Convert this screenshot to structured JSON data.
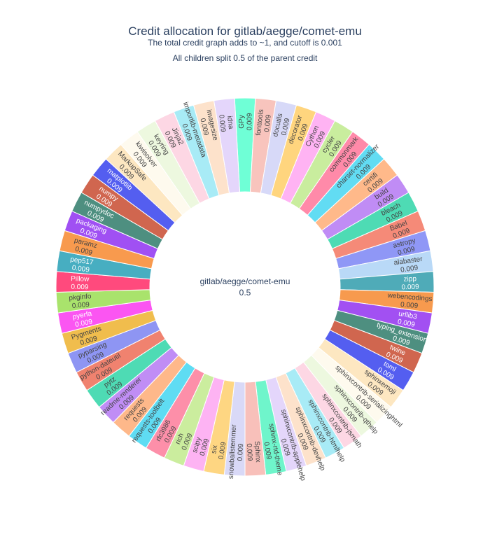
{
  "chart_data": {
    "type": "sunburst",
    "title": "Credit allocation for gitlab/aegge/comet-emu",
    "subtitle_lines": [
      "The total credit graph adds to ~1, and cutoff is 0.001",
      "All children split 0.5 of the parent credit"
    ],
    "root": {
      "label": "gitlab/aegge/comet-emu",
      "value_text": "0.5"
    },
    "children": [
      {
        "label": "GPy",
        "value": 0.009,
        "value_text": "0.009",
        "color": "#6fffd6"
      },
      {
        "label": "fonttools",
        "value": 0.009,
        "value_text": "0.009",
        "color": "#f8c4bd"
      },
      {
        "label": "docutils",
        "value": 0.009,
        "value_text": "0.009",
        "color": "#d7d9f8"
      },
      {
        "label": "decorator",
        "value": 0.009,
        "value_text": "0.009",
        "color": "#ffd57e"
      },
      {
        "label": "Cython",
        "value": 0.009,
        "value_text": "0.009",
        "color": "#ffb3f3"
      },
      {
        "label": "cycler",
        "value": 0.009,
        "value_text": "0.009",
        "color": "#c9ed9e"
      },
      {
        "label": "commonmark",
        "value": 0.009,
        "value_text": "0.009",
        "color": "#ff8aa9"
      },
      {
        "label": "charset-normalizer",
        "value": 0.009,
        "value_text": "0.009",
        "color": "#62dcf3"
      },
      {
        "label": "certifi",
        "value": 0.009,
        "value_text": "0.009",
        "color": "#ffb98a"
      },
      {
        "label": "build",
        "value": 0.009,
        "value_text": "0.009",
        "color": "#c08cf5"
      },
      {
        "label": "bleach",
        "value": 0.009,
        "value_text": "0.009",
        "color": "#4edbb4"
      },
      {
        "label": "Babel",
        "value": 0.009,
        "value_text": "0.009",
        "color": "#f58a78"
      },
      {
        "label": "astropy",
        "value": 0.009,
        "value_text": "0.009",
        "color": "#8f97f6"
      },
      {
        "label": "alabaster",
        "value": 0.009,
        "value_text": "0.009",
        "color": "#b9d9f7"
      },
      {
        "label": "zipp",
        "value": 0.009,
        "value_text": "0.009",
        "color": "#4fabb8"
      },
      {
        "label": "webencodings",
        "value": 0.009,
        "value_text": "0.009",
        "color": "#f79a4e"
      },
      {
        "label": "urllib3",
        "value": 0.009,
        "value_text": "0.009",
        "color": "#a250f2"
      },
      {
        "label": "typing_extensions",
        "value": 0.009,
        "value_text": "0.009",
        "color": "#4e8f80"
      },
      {
        "label": "twine",
        "value": 0.009,
        "value_text": "0.009",
        "color": "#d0664f"
      },
      {
        "label": "toml",
        "value": 0.009,
        "value_text": "0.009",
        "color": "#545ef0"
      },
      {
        "label": "sphinxemoji",
        "value": 0.009,
        "value_text": "0.009",
        "color": "#fde7c1"
      },
      {
        "label": "sphinxcontrib-serializinghtml",
        "value": 0.009,
        "value_text": "0.009",
        "color": "#fefaee"
      },
      {
        "label": "sphinxcontrib-qthelp",
        "value": 0.009,
        "value_text": "0.009",
        "color": "#edf8df"
      },
      {
        "label": "sphinxcontrib-jsmath",
        "value": 0.009,
        "value_text": "0.009",
        "color": "#fdd7e4"
      },
      {
        "label": "sphinxcontrib-htmlhelp",
        "value": 0.009,
        "value_text": "0.009",
        "color": "#a8ebf6"
      },
      {
        "label": "sphinxcontrib-devhelp",
        "value": 0.009,
        "value_text": "0.009",
        "color": "#fde2cb"
      },
      {
        "label": "sphinxcontrib-applehelp",
        "value": 0.009,
        "value_text": "0.009",
        "color": "#e4d6fb"
      },
      {
        "label": "sphinx-rtd-theme",
        "value": 0.009,
        "value_text": "0.009",
        "color": "#6ff5cb"
      },
      {
        "label": "Sphinx",
        "value": 0.009,
        "value_text": "0.009",
        "color": "#f8c0ba"
      },
      {
        "label": "snowballstemmer",
        "value": 0.009,
        "value_text": "0.009",
        "color": "#d9d9f7"
      },
      {
        "label": "six",
        "value": 0.009,
        "value_text": "0.009",
        "color": "#fed682"
      },
      {
        "label": "scipy",
        "value": 0.009,
        "value_text": "0.009",
        "color": "#fdb3f3"
      },
      {
        "label": "rich",
        "value": 0.009,
        "value_text": "0.009",
        "color": "#cbed9e"
      },
      {
        "label": "rfc3986",
        "value": 0.009,
        "value_text": "0.009",
        "color": "#fd8fa9"
      },
      {
        "label": "requests-toolbelt",
        "value": 0.009,
        "value_text": "0.009",
        "color": "#5fdcf3"
      },
      {
        "label": "requests",
        "value": 0.009,
        "value_text": "0.009",
        "color": "#feb88a"
      },
      {
        "label": "readme-renderer",
        "value": 0.009,
        "value_text": "0.009",
        "color": "#c08df5"
      },
      {
        "label": "pytz",
        "value": 0.009,
        "value_text": "0.009",
        "color": "#4edbb4"
      },
      {
        "label": "python-dateutil",
        "value": 0.009,
        "value_text": "0.009",
        "color": "#f0826f"
      },
      {
        "label": "pyparsing",
        "value": 0.009,
        "value_text": "0.009",
        "color": "#8e95f3"
      },
      {
        "label": "Pygments",
        "value": 0.009,
        "value_text": "0.009",
        "color": "#f0bd4d"
      },
      {
        "label": "pyerfa",
        "value": 0.009,
        "value_text": "0.009",
        "color": "#fb55f2"
      },
      {
        "label": "pkginfo",
        "value": 0.009,
        "value_text": "0.009",
        "color": "#a9e36c"
      },
      {
        "label": "Pillow",
        "value": 0.009,
        "value_text": "0.009",
        "color": "#ff4a7d"
      },
      {
        "label": "pep517",
        "value": 0.009,
        "value_text": "0.009",
        "color": "#47aec1"
      },
      {
        "label": "paramz",
        "value": 0.009,
        "value_text": "0.009",
        "color": "#f89a4e"
      },
      {
        "label": "packaging",
        "value": 0.009,
        "value_text": "0.009",
        "color": "#a050f3"
      },
      {
        "label": "numpydoc",
        "value": 0.009,
        "value_text": "0.009",
        "color": "#4e8f80"
      },
      {
        "label": "numpy",
        "value": 0.009,
        "value_text": "0.009",
        "color": "#d0664f"
      },
      {
        "label": "matplotlib",
        "value": 0.009,
        "value_text": "0.009",
        "color": "#545ef0"
      },
      {
        "label": "MarkupSafe",
        "value": 0.009,
        "value_text": "0.009",
        "color": "#fde7c1"
      },
      {
        "label": "kiwisolver",
        "value": 0.009,
        "value_text": "0.009",
        "color": "#fefaee"
      },
      {
        "label": "keyring",
        "value": 0.009,
        "value_text": "0.009",
        "color": "#edf8df"
      },
      {
        "label": "Jinja2",
        "value": 0.009,
        "value_text": "0.009",
        "color": "#fdd7e4"
      },
      {
        "label": "importlib-metadata",
        "value": 0.009,
        "value_text": "0.009",
        "color": "#a8ebf6"
      },
      {
        "label": "imagesize",
        "value": 0.009,
        "value_text": "0.009",
        "color": "#fde2cb"
      },
      {
        "label": "idna",
        "value": 0.009,
        "value_text": "0.009",
        "color": "#e4d6fb"
      }
    ]
  }
}
